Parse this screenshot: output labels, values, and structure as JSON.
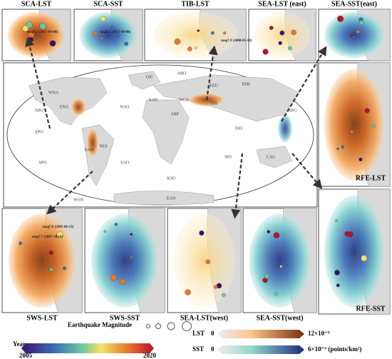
{
  "panels": {
    "top": [
      "SCA-LST",
      "SCA-SST",
      "TIB-LST",
      "SEA-LST (east)",
      "SEA-SST(east)"
    ],
    "right": [
      "RFE-LST",
      "RFE-SST"
    ],
    "bottom": [
      "SWS-LST",
      "SWS-SST",
      "SEA-LST(west)",
      "SEA-SST(west)"
    ]
  },
  "annotations": [
    "mag8.2 (2017-09-08)",
    "mag8.2 (2017-09-08)",
    "mag7.9 (2008-05-12)",
    "mag7.7 (2007-11-14)",
    "mag7.6 (2005-06-13)"
  ],
  "regions": [
    "NPO",
    "NAO",
    "EPO",
    "SPO",
    "SAO",
    "SIO",
    "SOO",
    "EAN",
    "WAN",
    "GIC",
    "EEU",
    "ESB",
    "NPO",
    "CAU",
    "SAH",
    "WCA",
    "TIB",
    "ARP",
    "ENA",
    "WNA",
    "NES",
    "SAM",
    "EIO",
    "ARO"
  ],
  "legend": {
    "magnitude_title": "Earthquake Magnitude",
    "year_label": "Year",
    "year_start": "2005",
    "year_end": "2020",
    "lst_label": "LST",
    "lst_min": "0",
    "lst_max": "12×10⁻³",
    "sst_label": "SST",
    "sst_min": "0",
    "sst_max": "6×10⁻³ (points/km²)"
  }
}
